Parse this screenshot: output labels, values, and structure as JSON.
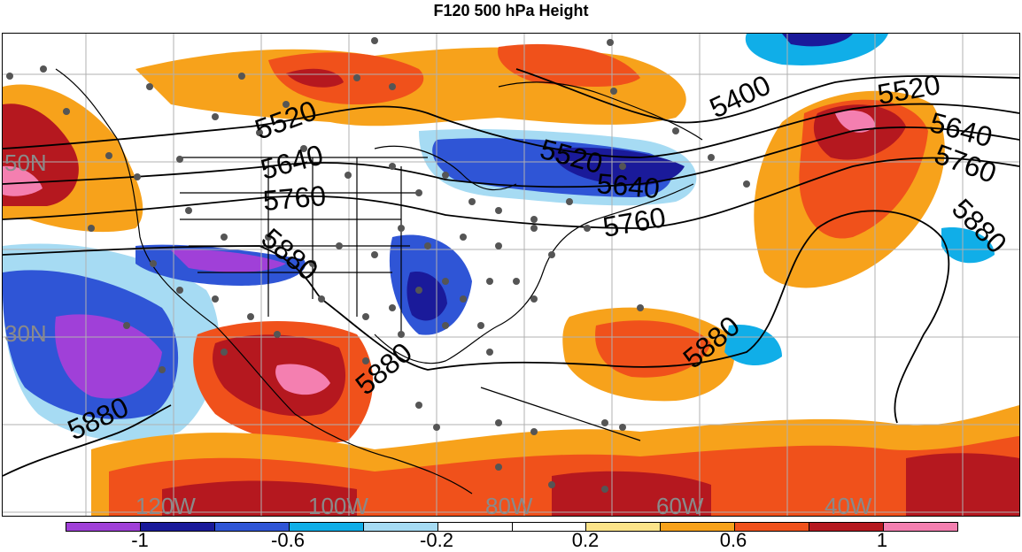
{
  "title": "F120 500 hPa Height",
  "map": {
    "lat_labels": [
      "50N",
      "30N"
    ],
    "lon_labels": [
      "120W",
      "100W",
      "80W",
      "60W",
      "40W"
    ],
    "contour_labels": [
      "5400",
      "5520",
      "5640",
      "5760",
      "5880",
      "5520",
      "5640",
      "5760",
      "5880",
      "5520",
      "5640",
      "5760",
      "5880",
      "5880",
      "5880"
    ],
    "station_marker": "gray-dot"
  },
  "colorbar": {
    "colors": [
      "#a040d8",
      "#1a1a9a",
      "#2f55d6",
      "#10aee8",
      "#a6dbf3",
      "#ffffff",
      "#ffffff",
      "#fbe38a",
      "#f7a21b",
      "#f0511b",
      "#b5181f",
      "#f47fb0"
    ],
    "tick_labels": [
      "-1",
      "-0.6",
      "-0.2",
      "0.2",
      "0.6",
      "1"
    ]
  }
}
